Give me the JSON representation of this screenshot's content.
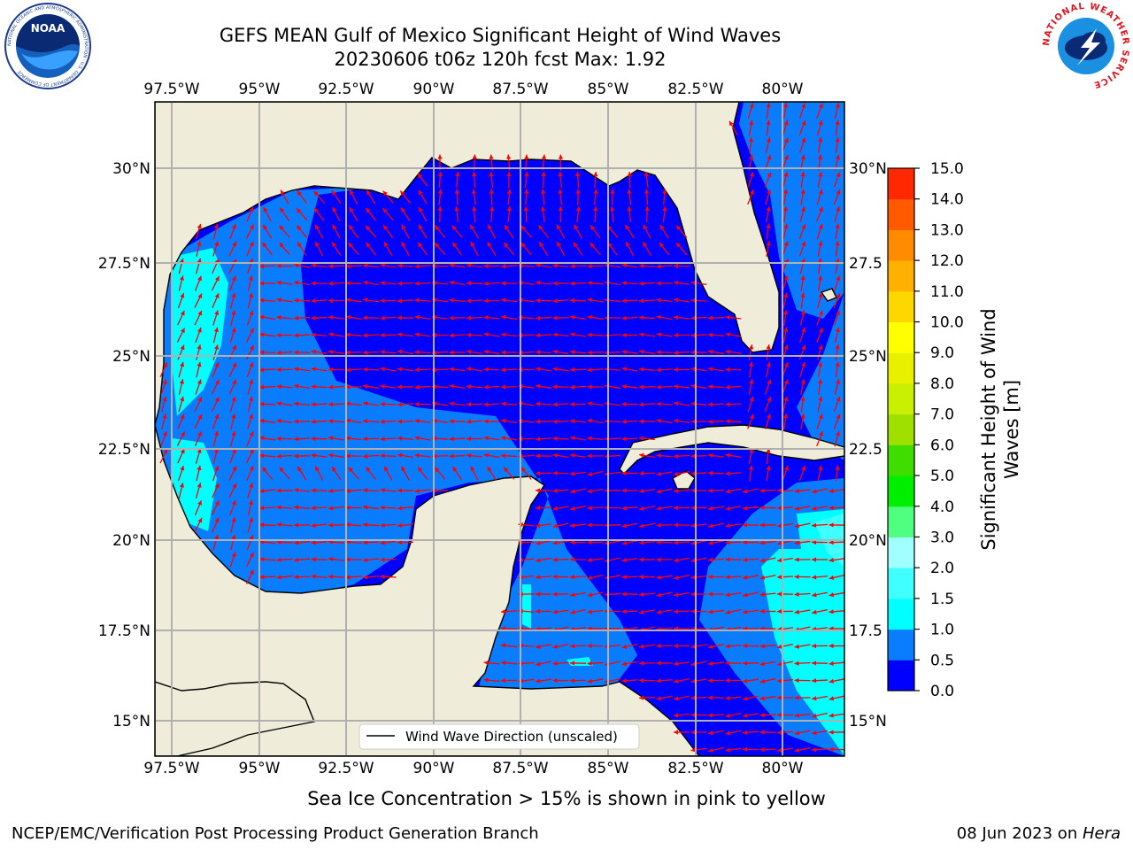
{
  "title": {
    "line1": "GEFS MEAN Gulf of Mexico Significant Height of Wind Waves",
    "line2": "20230606 t06z 120h fcst   Max: 1.92"
  },
  "logos": {
    "noaa": {
      "text": "NOAA",
      "ring": "NATIONAL OCEANIC AND ATMOSPHERIC ADMINISTRATION · U.S. DEPARTMENT OF COMMERCE"
    },
    "nws": {
      "ring": "NATIONAL WEATHER SERVICE"
    }
  },
  "map": {
    "lon_labels": [
      "97.5°W",
      "95°W",
      "92.5°W",
      "90°W",
      "87.5°W",
      "85°W",
      "82.5°W",
      "80°W"
    ],
    "lat_labels_left": [
      "30°N",
      "27.5°N",
      "25°N",
      "22.5°N",
      "20°N",
      "17.5°N",
      "15°N"
    ],
    "lat_labels_right": [
      "30°N",
      "27.5",
      "25°N",
      "22.5",
      "20°N",
      "17.5",
      "15°N"
    ],
    "legend_label": "Wind Wave Direction (unscaled)",
    "arrow_color": "#ff0000",
    "land_color": "#efedda"
  },
  "colorbar": {
    "label_line1": "Significant Height of Wind",
    "label_line2": "Waves [m]",
    "ticks": [
      "0.0",
      "0.5",
      "1.0",
      "1.5",
      "2.0",
      "3.0",
      "4.0",
      "5.0",
      "6.0",
      "7.0",
      "8.0",
      "9.0",
      "10.0",
      "11.0",
      "12.0",
      "13.0",
      "14.0",
      "15.0"
    ],
    "colors": [
      "#0000ff",
      "#0a7dff",
      "#00ffff",
      "#40ffff",
      "#a0ffff",
      "#50ff80",
      "#00ee00",
      "#40dd00",
      "#a0e000",
      "#c8f000",
      "#e8f000",
      "#ffff00",
      "#ffd700",
      "#ffb000",
      "#ff8c00",
      "#ff5a00",
      "#ff2800"
    ]
  },
  "sea_ice_note": "Sea Ice Concentration > 15% is shown in pink to yellow",
  "footer": {
    "left": "NCEP/EMC/Verification Post Processing Product Generation Branch",
    "right_date": "08 Jun 2023 on ",
    "right_host": "Hera"
  }
}
